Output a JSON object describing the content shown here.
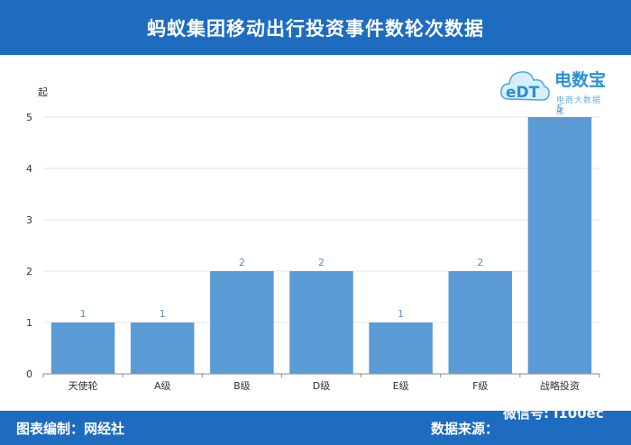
{
  "header": {
    "title": "蚂蚁集团移动出行投资事件数轮次数据"
  },
  "logo": {
    "brand": "电数宝",
    "tagline": "电商大数据库",
    "mark": "eDT"
  },
  "footer": {
    "left": "图表编制：网经社",
    "right": "数据来源："
  },
  "watermark": {
    "text": "微信号: i100ec"
  },
  "colors": {
    "bar": "#5b9bd5",
    "header": "#1d6cc0",
    "data_label": "#5b8fc9"
  },
  "chart_data": {
    "type": "bar",
    "title": "蚂蚁集团移动出行投资事件数轮次数据",
    "ylabel": "起",
    "categories": [
      "天使轮",
      "A级",
      "B级",
      "D级",
      "E级",
      "F级",
      "战略投资"
    ],
    "values": [
      1,
      1,
      2,
      2,
      1,
      2,
      5
    ],
    "ylim": [
      0,
      5
    ],
    "yticks": [
      0,
      1,
      2,
      3,
      4,
      5
    ],
    "grid": true,
    "data_labels": true
  }
}
